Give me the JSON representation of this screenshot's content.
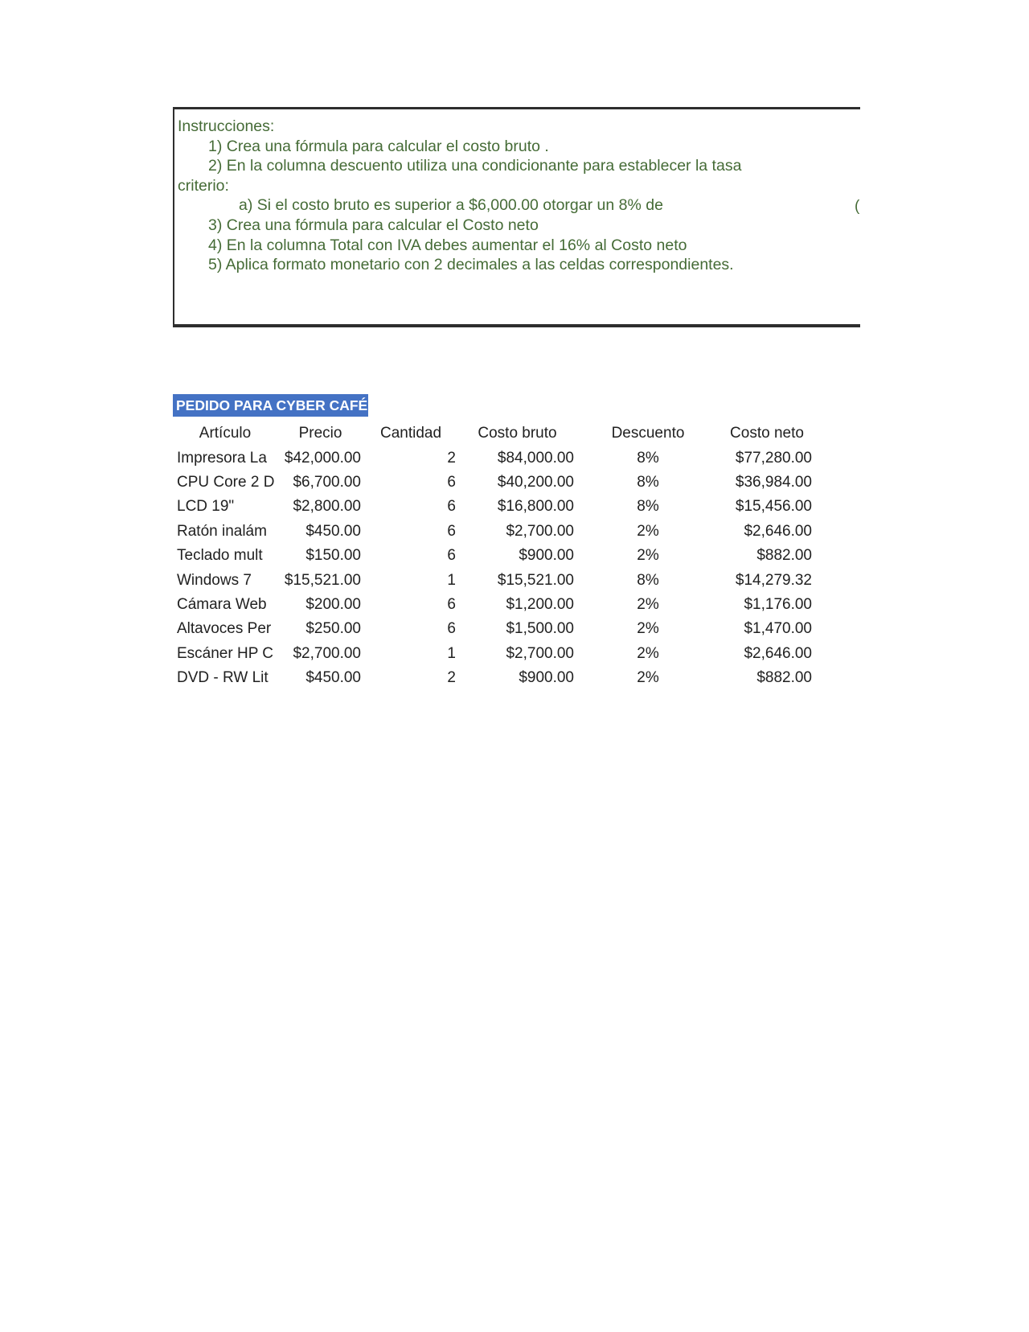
{
  "colors": {
    "instructions_text": "#456b36",
    "box_border": "#2e2e2e",
    "title_bg": "#4472c4",
    "title_text": "#ffffff",
    "table_text": "#212121"
  },
  "instructions": {
    "lines": [
      {
        "indent": 0,
        "text": "Instrucciones:"
      },
      {
        "indent": 1,
        "text": "1) Crea una fórmula para calcular el costo bruto ."
      },
      {
        "indent": 1,
        "text": "2) En la columna descuento utiliza una condicionante para establecer la tasa"
      },
      {
        "indent": 0,
        "text": "criterio:"
      },
      {
        "indent": 2,
        "text": "a) Si el costo bruto es superior a $6,000.00 otorgar un 8% de"
      },
      {
        "indent": 1,
        "text": "3) Crea una fórmula para calcular el Costo neto"
      },
      {
        "indent": 1,
        "text": "4) En la columna Total con IVA debes aumentar el 16% al Costo neto"
      },
      {
        "indent": 1,
        "text": "5) Aplica formato monetario con 2 decimales a las celdas correspondientes."
      }
    ],
    "clipped_fragment": "("
  },
  "table": {
    "title": "PEDIDO PARA CYBER CAFÉ",
    "columns": [
      "Artículo",
      "Precio",
      "Cantidad",
      "Costo bruto",
      "Descuento",
      "Costo neto"
    ],
    "rows": [
      {
        "articulo": "Impresora La",
        "precio": "$42,000.00",
        "cantidad": "2",
        "costo_bruto": "$84,000.00",
        "descuento": "8%",
        "costo_neto": "$77,280.00"
      },
      {
        "articulo": "CPU Core 2 D",
        "precio": "$6,700.00",
        "cantidad": "6",
        "costo_bruto": "$40,200.00",
        "descuento": "8%",
        "costo_neto": "$36,984.00"
      },
      {
        "articulo": "LCD 19\"",
        "precio": "$2,800.00",
        "cantidad": "6",
        "costo_bruto": "$16,800.00",
        "descuento": "8%",
        "costo_neto": "$15,456.00"
      },
      {
        "articulo": "Ratón inalám",
        "precio": "$450.00",
        "cantidad": "6",
        "costo_bruto": "$2,700.00",
        "descuento": "2%",
        "costo_neto": "$2,646.00"
      },
      {
        "articulo": "Teclado mult",
        "precio": "$150.00",
        "cantidad": "6",
        "costo_bruto": "$900.00",
        "descuento": "2%",
        "costo_neto": "$882.00"
      },
      {
        "articulo": "Windows 7",
        "precio": "$15,521.00",
        "cantidad": "1",
        "costo_bruto": "$15,521.00",
        "descuento": "8%",
        "costo_neto": "$14,279.32"
      },
      {
        "articulo": "Cámara Web",
        "precio": "$200.00",
        "cantidad": "6",
        "costo_bruto": "$1,200.00",
        "descuento": "2%",
        "costo_neto": "$1,176.00"
      },
      {
        "articulo": "Altavoces Per",
        "precio": "$250.00",
        "cantidad": "6",
        "costo_bruto": "$1,500.00",
        "descuento": "2%",
        "costo_neto": "$1,470.00"
      },
      {
        "articulo": "Escáner HP C",
        "precio": "$2,700.00",
        "cantidad": "1",
        "costo_bruto": "$2,700.00",
        "descuento": "2%",
        "costo_neto": "$2,646.00"
      },
      {
        "articulo": "DVD - RW Lit",
        "precio": "$450.00",
        "cantidad": "2",
        "costo_bruto": "$900.00",
        "descuento": "2%",
        "costo_neto": "$882.00"
      }
    ]
  }
}
